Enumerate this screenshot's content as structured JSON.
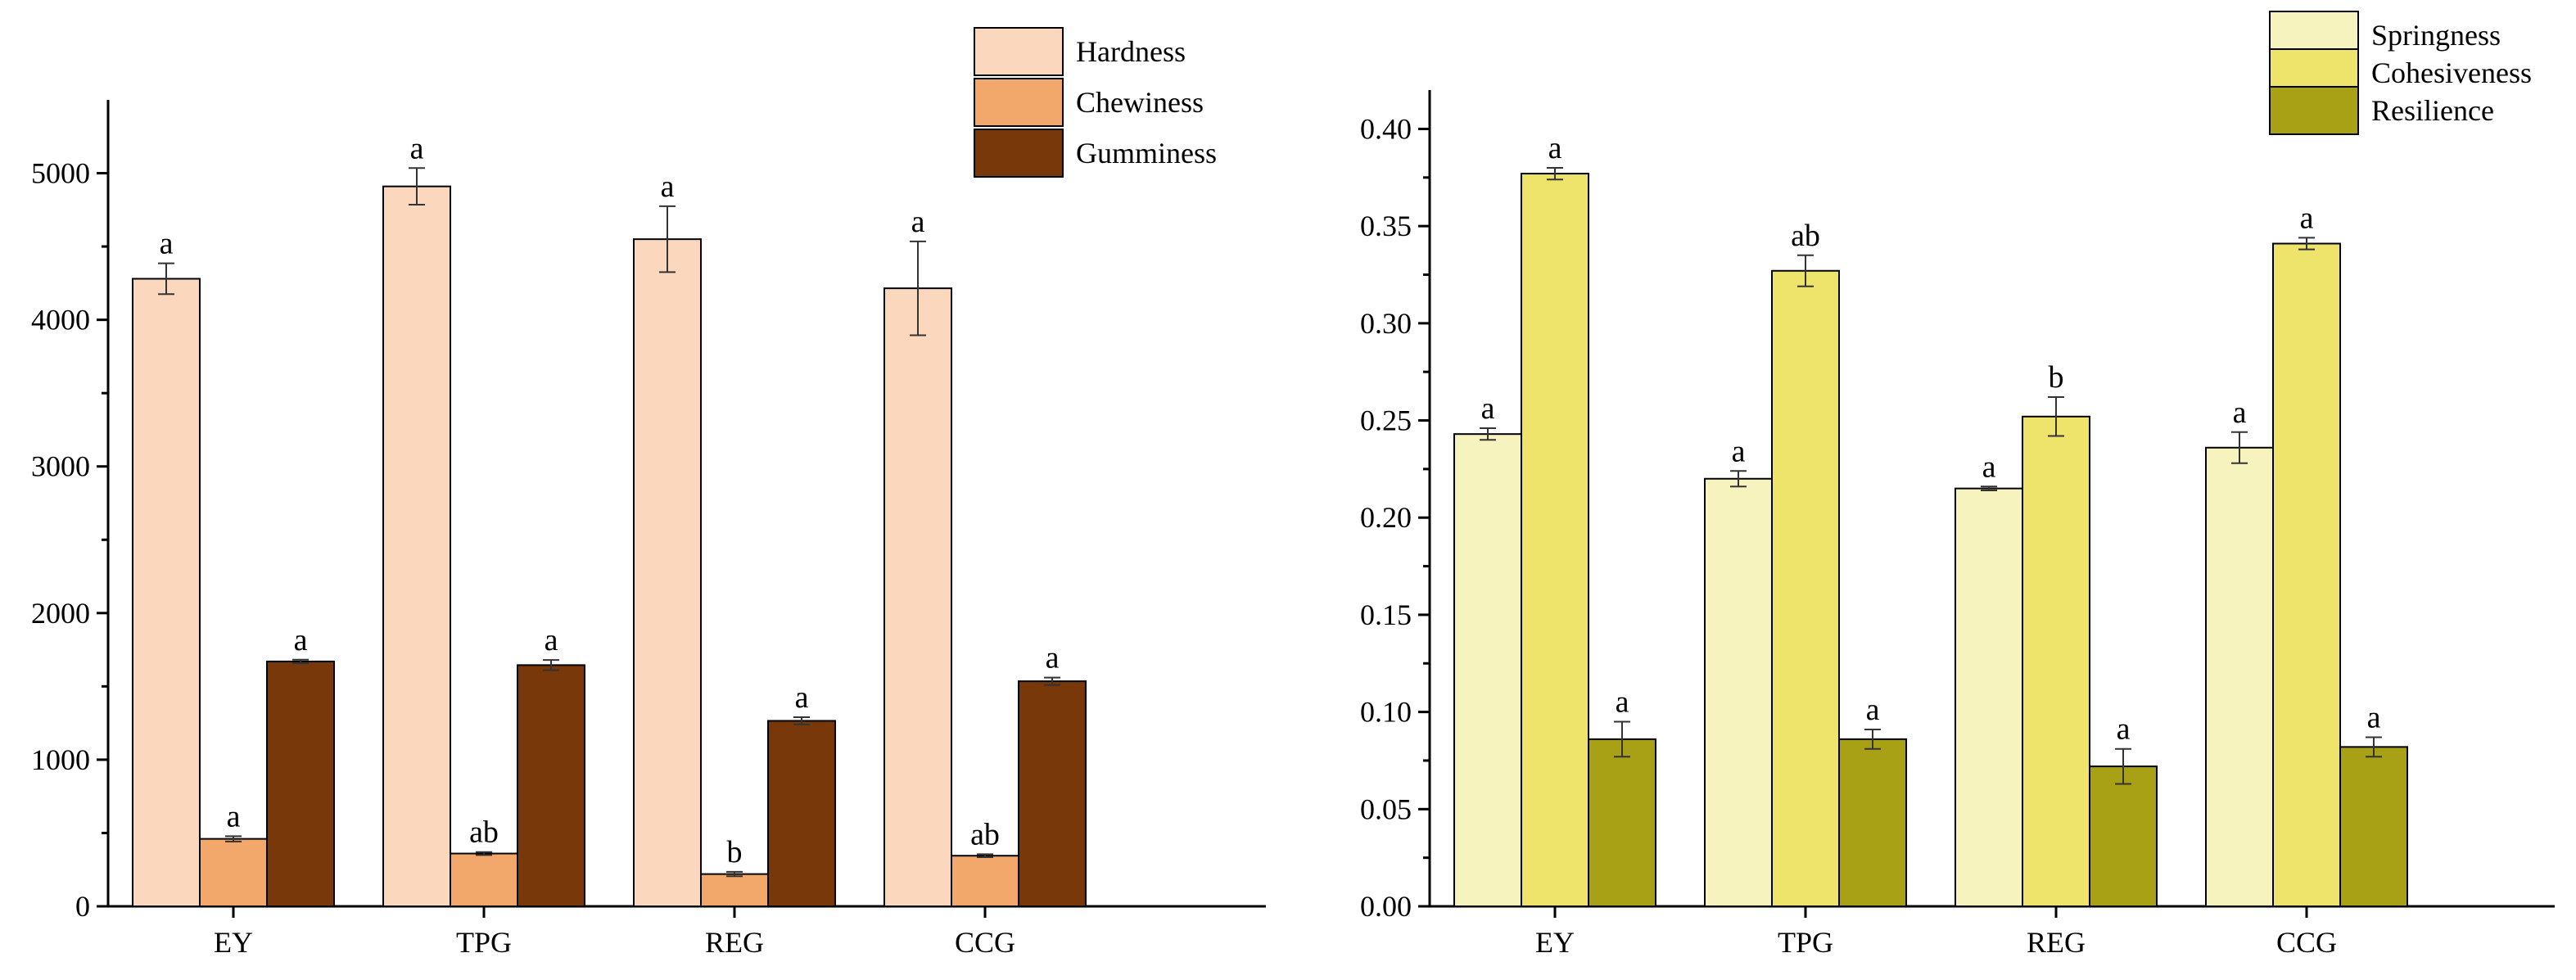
{
  "chart_data": [
    {
      "type": "bar",
      "categories": [
        "EY",
        "TPG",
        "REG",
        "CCG"
      ],
      "ylim": [
        0,
        5500
      ],
      "yticks": [
        0,
        1000,
        2000,
        3000,
        4000,
        5000
      ],
      "legend_position": "top-right",
      "series": [
        {
          "name": "Hardness",
          "color": "#FBD8BD",
          "values": [
            4280,
            4910,
            4550,
            4215
          ],
          "errors": [
            105,
            125,
            225,
            320
          ],
          "labels": [
            "a",
            "a",
            "a",
            "a"
          ]
        },
        {
          "name": "Chewiness",
          "color": "#F2A86B",
          "values": [
            460,
            360,
            220,
            345
          ],
          "errors": [
            18,
            10,
            15,
            10
          ],
          "labels": [
            "a",
            "ab",
            "b",
            "ab"
          ]
        },
        {
          "name": "Gumminess",
          "color": "#783809",
          "values": [
            1670,
            1645,
            1265,
            1535
          ],
          "errors": [
            12,
            35,
            25,
            25
          ],
          "labels": [
            "a",
            "a",
            "a",
            "a"
          ]
        }
      ]
    },
    {
      "type": "bar",
      "categories": [
        "EY",
        "TPG",
        "REG",
        "CCG"
      ],
      "ylim": [
        0,
        0.42
      ],
      "yticks": [
        "0.00",
        "0.05",
        "0.10",
        "0.15",
        "0.20",
        "0.25",
        "0.30",
        "0.35",
        "0.40"
      ],
      "legend_position": "top-right",
      "series": [
        {
          "name": "Springness",
          "color": "#F6F3BF",
          "values": [
            0.243,
            0.22,
            0.215,
            0.236
          ],
          "errors": [
            0.003,
            0.004,
            0.001,
            0.008
          ],
          "labels": [
            "a",
            "a",
            "a",
            "a"
          ]
        },
        {
          "name": "Cohesiveness",
          "color": "#EEE46B",
          "values": [
            0.377,
            0.327,
            0.252,
            0.341
          ],
          "errors": [
            0.003,
            0.008,
            0.01,
            0.003
          ],
          "labels": [
            "a",
            "ab",
            "b",
            "a"
          ]
        },
        {
          "name": "Resilience",
          "color": "#A8A015",
          "values": [
            0.086,
            0.086,
            0.072,
            0.082
          ],
          "errors": [
            0.009,
            0.005,
            0.009,
            0.005
          ],
          "labels": [
            "a",
            "a",
            "a",
            "a"
          ]
        }
      ]
    }
  ]
}
